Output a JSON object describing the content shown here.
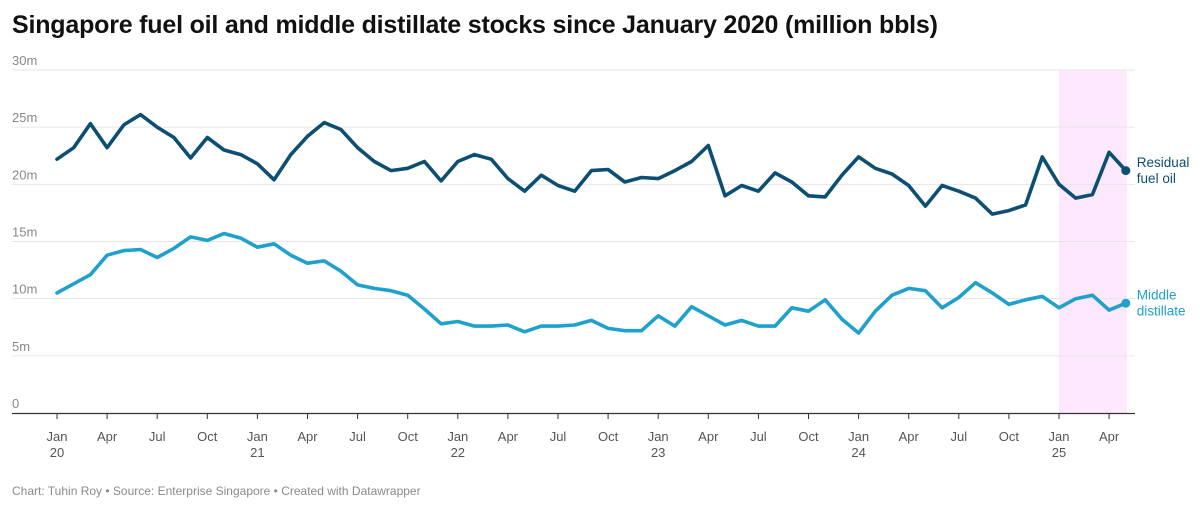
{
  "title": "Singapore fuel oil and middle distillate stocks since January 2020 (million bbls)",
  "footer": "Chart: Tuhin Roy • Source: Enterprise Singapore • Created with Datawrapper",
  "colors": {
    "residual": "#0d4f73",
    "distillate": "#1fa1cc",
    "highlight": "#fde8fd",
    "grid": "#e6e6e6",
    "axis": "#333333"
  },
  "chart_data": {
    "type": "line",
    "title": "Singapore fuel oil and middle distillate stocks since January 2020 (million bbls)",
    "xlabel": "",
    "ylabel": "",
    "ylim": [
      0,
      30
    ],
    "x_start": "2020-01",
    "y_ticks": [
      {
        "value": 0,
        "label": "0"
      },
      {
        "value": 5,
        "label": "5m"
      },
      {
        "value": 10,
        "label": "10m"
      },
      {
        "value": 15,
        "label": "15m"
      },
      {
        "value": 20,
        "label": "20m"
      },
      {
        "value": 25,
        "label": "25m"
      },
      {
        "value": 30,
        "label": "30m"
      }
    ],
    "x_ticks": [
      {
        "month": 0,
        "line1": "Jan",
        "line2": "20"
      },
      {
        "month": 3,
        "line1": "Apr",
        "line2": ""
      },
      {
        "month": 6,
        "line1": "Jul",
        "line2": ""
      },
      {
        "month": 9,
        "line1": "Oct",
        "line2": ""
      },
      {
        "month": 12,
        "line1": "Jan",
        "line2": "21"
      },
      {
        "month": 15,
        "line1": "Apr",
        "line2": ""
      },
      {
        "month": 18,
        "line1": "Jul",
        "line2": ""
      },
      {
        "month": 21,
        "line1": "Oct",
        "line2": ""
      },
      {
        "month": 24,
        "line1": "Jan",
        "line2": "22"
      },
      {
        "month": 27,
        "line1": "Apr",
        "line2": ""
      },
      {
        "month": 30,
        "line1": "Jul",
        "line2": ""
      },
      {
        "month": 33,
        "line1": "Oct",
        "line2": ""
      },
      {
        "month": 36,
        "line1": "Jan",
        "line2": "23"
      },
      {
        "month": 39,
        "line1": "Apr",
        "line2": ""
      },
      {
        "month": 42,
        "line1": "Jul",
        "line2": ""
      },
      {
        "month": 45,
        "line1": "Oct",
        "line2": ""
      },
      {
        "month": 48,
        "line1": "Jan",
        "line2": "24"
      },
      {
        "month": 51,
        "line1": "Apr",
        "line2": ""
      },
      {
        "month": 54,
        "line1": "Jul",
        "line2": ""
      },
      {
        "month": 57,
        "line1": "Oct",
        "line2": ""
      },
      {
        "month": 60,
        "line1": "Jan",
        "line2": "25"
      },
      {
        "month": 63,
        "line1": "Apr",
        "line2": ""
      }
    ],
    "highlight_range": [
      60,
      64
    ],
    "series": [
      {
        "name": "Residual fuel oil",
        "label_lines": [
          "Residual",
          "fuel oil"
        ],
        "color": "#0d4f73",
        "values": [
          22.2,
          23.2,
          25.3,
          23.2,
          25.2,
          26.1,
          25.0,
          24.1,
          22.3,
          24.1,
          23.0,
          22.6,
          21.8,
          20.4,
          22.6,
          24.2,
          25.4,
          24.8,
          23.2,
          22.0,
          21.2,
          21.4,
          22.0,
          20.3,
          22.0,
          22.6,
          22.2,
          20.5,
          19.4,
          20.8,
          19.9,
          19.4,
          21.2,
          21.3,
          20.2,
          20.6,
          20.5,
          21.2,
          22.0,
          23.4,
          19.0,
          19.9,
          19.4,
          21.0,
          20.2,
          19.0,
          18.9,
          20.8,
          22.4,
          21.4,
          20.9,
          19.9,
          18.1,
          19.9,
          19.4,
          18.8,
          17.4,
          17.7,
          18.2,
          22.4,
          20.0,
          18.8,
          19.1,
          22.8,
          21.2
        ]
      },
      {
        "name": "Middle distillate",
        "label_lines": [
          "Middle",
          "distillate"
        ],
        "color": "#1fa1cc",
        "values": [
          10.5,
          11.3,
          12.1,
          13.8,
          14.2,
          14.3,
          13.6,
          14.4,
          15.4,
          15.1,
          15.7,
          15.3,
          14.5,
          14.8,
          13.8,
          13.1,
          13.3,
          12.4,
          11.2,
          10.9,
          10.7,
          10.3,
          9.1,
          7.8,
          8.0,
          7.6,
          7.6,
          7.7,
          7.1,
          7.6,
          7.6,
          7.7,
          8.1,
          7.4,
          7.2,
          7.2,
          8.5,
          7.6,
          9.3,
          8.5,
          7.7,
          8.1,
          7.6,
          7.6,
          9.2,
          8.9,
          9.9,
          8.2,
          7.0,
          8.9,
          10.3,
          10.9,
          10.7,
          9.2,
          10.1,
          11.4,
          10.5,
          9.5,
          9.9,
          10.2,
          9.2,
          10.0,
          10.3,
          9.0,
          9.6
        ]
      }
    ]
  }
}
